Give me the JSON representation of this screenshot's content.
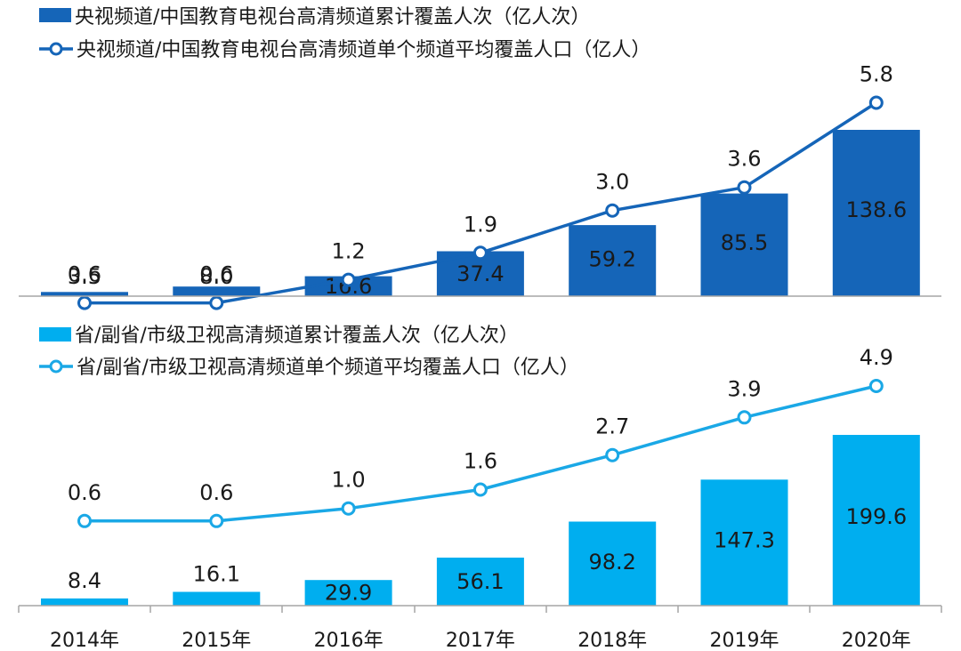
{
  "colors": {
    "top_bar": "#1565b8",
    "top_line": "#1565b8",
    "bottom_bar": "#00aeef",
    "bottom_line": "#1aa8e6",
    "text": "#1a1a1a",
    "bar_label_on_dark": "#1a1a1a"
  },
  "chart_data": [
    {
      "type": "bar",
      "panel": "top",
      "categories": [
        "2014年",
        "2015年",
        "2016年",
        "2017年",
        "2018年",
        "2019年",
        "2020年"
      ],
      "series": [
        {
          "name": "央视频道/中国教育电视台高清频道累计覆盖人次（亿人次）",
          "kind": "bar",
          "values": [
            3.5,
            8.0,
            16.6,
            37.4,
            59.2,
            85.5,
            138.6
          ],
          "labels": [
            "3.5",
            "8.0",
            "16.6",
            "37.4",
            "59.2",
            "85.5",
            "138.6"
          ],
          "color": "#1565b8"
        },
        {
          "name": "央视频道/中国教育电视台高清频道单个频道平均覆盖人口（亿人）",
          "kind": "line",
          "values": [
            0.6,
            0.6,
            1.2,
            1.9,
            3.0,
            3.6,
            5.8
          ],
          "labels": [
            "0.6",
            "0.6",
            "1.2",
            "1.9",
            "3.0",
            "3.6",
            "5.8"
          ],
          "color": "#1565b8"
        }
      ],
      "legend": "top-left",
      "grid": false
    },
    {
      "type": "bar",
      "panel": "bottom",
      "categories": [
        "2014年",
        "2015年",
        "2016年",
        "2017年",
        "2018年",
        "2019年",
        "2020年"
      ],
      "series": [
        {
          "name": "省/副省/市级卫视高清频道累计覆盖人次（亿人次）",
          "kind": "bar",
          "values": [
            8.4,
            16.1,
            29.9,
            56.1,
            98.2,
            147.3,
            199.6
          ],
          "labels": [
            "8.4",
            "16.1",
            "29.9",
            "56.1",
            "98.2",
            "147.3",
            "199.6"
          ],
          "color": "#00aeef"
        },
        {
          "name": "省/副省/市级卫视高清频道单个频道平均覆盖人口（亿人）",
          "kind": "line",
          "values": [
            0.6,
            0.6,
            1.0,
            1.6,
            2.7,
            3.9,
            4.9
          ],
          "labels": [
            "0.6",
            "0.6",
            "1.0",
            "1.6",
            "2.7",
            "3.9",
            "4.9"
          ],
          "color": "#1aa8e6"
        }
      ],
      "legend": "top-left",
      "grid": false
    }
  ]
}
